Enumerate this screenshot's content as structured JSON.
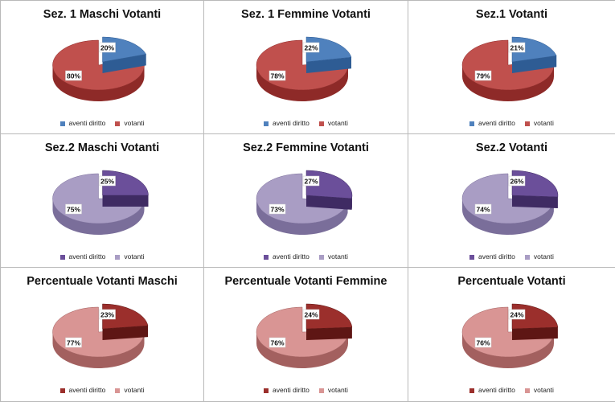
{
  "chart_data": [
    {
      "type": "pie",
      "title": "Sez. 1 Maschi Votanti",
      "categories": [
        "aventi diritto",
        "votanti"
      ],
      "values": [
        20,
        80
      ],
      "labels": [
        "20%",
        "80%"
      ],
      "colors": {
        "top": [
          "#4f81bd",
          "#c0504d"
        ],
        "side": [
          "#2e5c94",
          "#8e2a28"
        ]
      },
      "legend_position": "bottom"
    },
    {
      "type": "pie",
      "title": "Sez. 1  Femmine Votanti",
      "categories": [
        "aventi diritto",
        "votanti"
      ],
      "values": [
        22,
        78
      ],
      "labels": [
        "22%",
        "78%"
      ],
      "colors": {
        "top": [
          "#4f81bd",
          "#c0504d"
        ],
        "side": [
          "#2e5c94",
          "#8e2a28"
        ]
      },
      "legend_position": "bottom"
    },
    {
      "type": "pie",
      "title": "Sez.1  Votanti",
      "categories": [
        "aventi diritto",
        "votanti"
      ],
      "values": [
        21,
        79
      ],
      "labels": [
        "21%",
        "79%"
      ],
      "colors": {
        "top": [
          "#4f81bd",
          "#c0504d"
        ],
        "side": [
          "#2e5c94",
          "#8e2a28"
        ]
      },
      "legend_position": "bottom"
    },
    {
      "type": "pie",
      "title": "Sez.2  Maschi Votanti",
      "categories": [
        "aventi diritto",
        "votanti"
      ],
      "values": [
        25,
        75
      ],
      "labels": [
        "25%",
        "75%"
      ],
      "colors": {
        "top": [
          "#6b4f9a",
          "#a99dc4"
        ],
        "side": [
          "#3f2b63",
          "#7a6e9a"
        ]
      },
      "legend_position": "bottom"
    },
    {
      "type": "pie",
      "title": "Sez.2 Femmine Votanti",
      "categories": [
        "aventi diritto",
        "votanti"
      ],
      "values": [
        27,
        73
      ],
      "labels": [
        "27%",
        "73%"
      ],
      "colors": {
        "top": [
          "#6b4f9a",
          "#a99dc4"
        ],
        "side": [
          "#3f2b63",
          "#7a6e9a"
        ]
      },
      "legend_position": "bottom"
    },
    {
      "type": "pie",
      "title": "Sez.2  Votanti",
      "categories": [
        "aventi diritto",
        "votanti"
      ],
      "values": [
        26,
        74
      ],
      "labels": [
        "26%",
        "74%"
      ],
      "colors": {
        "top": [
          "#6b4f9a",
          "#a99dc4"
        ],
        "side": [
          "#3f2b63",
          "#7a6e9a"
        ]
      },
      "legend_position": "bottom"
    },
    {
      "type": "pie",
      "title": "Percentuale  Votanti Maschi",
      "categories": [
        "aventi diritto",
        "votanti"
      ],
      "values": [
        23,
        77
      ],
      "labels": [
        "23%",
        "77%"
      ],
      "colors": {
        "top": [
          "#9b2f2c",
          "#d99594"
        ],
        "side": [
          "#5e1614",
          "#a3605f"
        ]
      },
      "legend_position": "bottom"
    },
    {
      "type": "pie",
      "title": "Percentuale Votanti Femmine",
      "categories": [
        "aventi diritto",
        "votanti"
      ],
      "values": [
        24,
        76
      ],
      "labels": [
        "24%",
        "76%"
      ],
      "colors": {
        "top": [
          "#9b2f2c",
          "#d99594"
        ],
        "side": [
          "#5e1614",
          "#a3605f"
        ]
      },
      "legend_position": "bottom"
    },
    {
      "type": "pie",
      "title": "Percentuale Votanti",
      "categories": [
        "aventi diritto",
        "votanti"
      ],
      "values": [
        24,
        76
      ],
      "labels": [
        "24%",
        "76%"
      ],
      "colors": {
        "top": [
          "#9b2f2c",
          "#d99594"
        ],
        "side": [
          "#5e1614",
          "#a3605f"
        ]
      },
      "legend_position": "bottom"
    }
  ]
}
